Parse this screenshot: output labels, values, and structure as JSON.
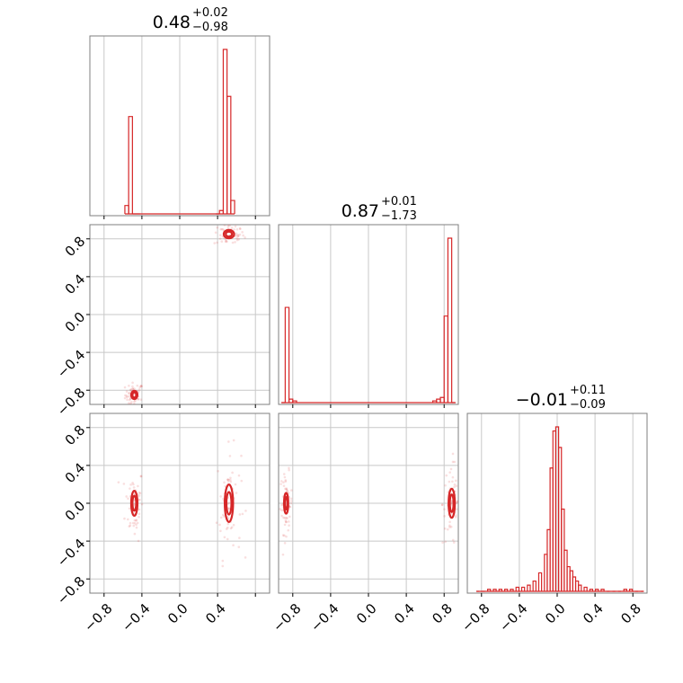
{
  "chart_data": [
    {
      "type": "histogram",
      "panel": "diag-0",
      "title": {
        "value": "0.48",
        "plus": "+0.02",
        "minus": "−0.98"
      },
      "xlim": [
        -0.95,
        0.95
      ],
      "bins_x": [
        -0.56,
        -0.52,
        -0.48,
        -0.44,
        0.4,
        0.44,
        0.48,
        0.52,
        0.56
      ],
      "bins_y": [
        0.05,
        0.58,
        0.0,
        0.0,
        0.0,
        0.02,
        0.98,
        0.7,
        0.08
      ],
      "xticks": [
        "−0.8",
        "−0.4",
        "0.0",
        "0.4"
      ]
    },
    {
      "type": "histogram",
      "panel": "diag-1",
      "title": {
        "value": "0.87",
        "plus": "+0.01",
        "minus": "−1.73"
      },
      "xlim": [
        -0.95,
        0.95
      ],
      "bins_x": [
        -0.9,
        -0.86,
        -0.82,
        -0.78,
        0.7,
        0.74,
        0.78,
        0.82,
        0.86,
        0.9
      ],
      "bins_y": [
        0.0,
        0.55,
        0.02,
        0.01,
        0.01,
        0.02,
        0.03,
        0.5,
        0.95,
        0.0
      ],
      "xticks": [
        "−0.8",
        "−0.4",
        "0.0",
        "0.4",
        "0.8"
      ]
    },
    {
      "type": "histogram",
      "panel": "diag-2",
      "title": {
        "value": "−0.01",
        "plus": "+0.11",
        "minus": "−0.09"
      },
      "xlim": [
        -0.95,
        0.95
      ],
      "bins_x": [
        -0.84,
        -0.78,
        -0.72,
        -0.66,
        -0.6,
        -0.54,
        -0.48,
        -0.42,
        -0.36,
        -0.3,
        -0.24,
        -0.18,
        -0.12,
        -0.09,
        -0.06,
        -0.03,
        0.0,
        0.03,
        0.06,
        0.09,
        0.12,
        0.15,
        0.18,
        0.21,
        0.24,
        0.3,
        0.36,
        0.42,
        0.48,
        0.54,
        0.6,
        0.66,
        0.72,
        0.78,
        0.84,
        0.9
      ],
      "bins_y": [
        0.0,
        0.0,
        0.01,
        0.01,
        0.01,
        0.01,
        0.01,
        0.02,
        0.02,
        0.03,
        0.05,
        0.09,
        0.18,
        0.3,
        0.6,
        0.78,
        0.8,
        0.7,
        0.4,
        0.2,
        0.12,
        0.1,
        0.07,
        0.05,
        0.03,
        0.02,
        0.01,
        0.01,
        0.01,
        0.0,
        0.0,
        0.0,
        0.01,
        0.01,
        0.0,
        0.0
      ],
      "xticks": [
        "−0.8",
        "−0.4",
        "0.0",
        "0.4",
        "0.8"
      ]
    },
    {
      "type": "scatter",
      "panel": "pair-1-0",
      "xlim": [
        -0.95,
        0.95
      ],
      "ylim": [
        -0.95,
        0.95
      ],
      "clusters": [
        {
          "x": -0.48,
          "y": -0.85,
          "spread": [
            0.03,
            0.04
          ]
        },
        {
          "x": 0.52,
          "y": 0.85,
          "spread": [
            0.05,
            0.04
          ]
        }
      ],
      "yticks": [
        "−0.8",
        "−0.4",
        "0.0",
        "0.4",
        "0.8"
      ]
    },
    {
      "type": "scatter",
      "panel": "pair-2-0",
      "xlim": [
        -0.95,
        0.95
      ],
      "ylim": [
        -0.95,
        0.95
      ],
      "clusters": [
        {
          "x": -0.48,
          "y": 0.0,
          "spread": [
            0.03,
            0.12
          ]
        },
        {
          "x": 0.52,
          "y": 0.0,
          "spread": [
            0.04,
            0.18
          ]
        }
      ],
      "yticks": [
        "−0.8",
        "−0.4",
        "0.0",
        "0.4",
        "0.8"
      ],
      "xticks": [
        "−0.8",
        "−0.4",
        "0.0",
        "0.4"
      ]
    },
    {
      "type": "scatter",
      "panel": "pair-2-1",
      "xlim": [
        -0.95,
        0.95
      ],
      "ylim": [
        -0.95,
        0.95
      ],
      "clusters": [
        {
          "x": -0.87,
          "y": 0.0,
          "spread": [
            0.02,
            0.1
          ]
        },
        {
          "x": 0.88,
          "y": 0.0,
          "spread": [
            0.03,
            0.14
          ]
        }
      ],
      "xticks": [
        "−0.8",
        "−0.4",
        "0.0",
        "0.4",
        "0.8"
      ]
    }
  ],
  "colors": {
    "series": "#d62728",
    "grid": "#c8c8c8",
    "frame": "#7f7f7f"
  }
}
